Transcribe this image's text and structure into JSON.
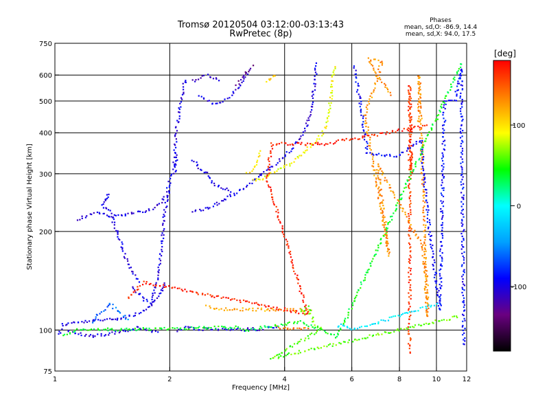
{
  "chart_data": {
    "type": "scatter",
    "title": "Tromsø 20120504 03:12:00-03:13:43",
    "subtitle": "RwPretec (8p)",
    "xlabel": "Frequency [MHz]",
    "ylabel": "Stationary phase Virtual Height [km]",
    "x_scale": "log",
    "y_scale": "log",
    "xlim": [
      1,
      12
    ],
    "ylim": [
      75,
      750
    ],
    "x_ticks": [
      1,
      2,
      4,
      6,
      8,
      10,
      12
    ],
    "y_ticks": [
      75,
      100,
      200,
      300,
      400,
      500,
      600,
      750
    ],
    "x_grid": [
      2,
      4,
      6,
      8,
      10
    ],
    "y_grid": [
      100,
      200,
      300,
      400,
      500,
      600
    ],
    "grid": true,
    "info_title": "Phases",
    "info_lines": [
      "mean, sd,O: -86.9, 14.4",
      "mean, sd,X:  94.0, 17.5"
    ],
    "colorbar": {
      "label": "[deg]",
      "range": [
        -180,
        180
      ],
      "ticks": [
        100,
        0,
        -100
      ],
      "colormap": [
        "#000000",
        "#6a0080",
        "#0000ff",
        "#00a0ff",
        "#00ffff",
        "#00ff00",
        "#ffff00",
        "#ff8000",
        "#ff0000"
      ]
    },
    "series": [
      {
        "phase": -100,
        "points": [
          [
            1.02,
            97
          ],
          [
            1.05,
            104
          ],
          [
            1.1,
            105
          ],
          [
            1.2,
            106
          ],
          [
            1.3,
            107
          ],
          [
            1.4,
            108
          ],
          [
            1.5,
            109
          ],
          [
            1.6,
            111
          ],
          [
            1.7,
            114
          ],
          [
            1.78,
            118
          ],
          [
            1.85,
            140
          ],
          [
            1.9,
            180
          ],
          [
            1.95,
            240
          ],
          [
            2.0,
            290
          ],
          [
            2.05,
            300
          ],
          [
            2.1,
            340
          ]
        ]
      },
      {
        "phase": -100,
        "points": [
          [
            1.15,
            218
          ],
          [
            1.2,
            222
          ],
          [
            1.25,
            225
          ],
          [
            1.3,
            228
          ],
          [
            1.35,
            225
          ],
          [
            1.4,
            222
          ],
          [
            1.5,
            225
          ],
          [
            1.6,
            228
          ],
          [
            1.7,
            230
          ],
          [
            1.8,
            235
          ],
          [
            1.9,
            245
          ],
          [
            2.0,
            265
          ]
        ]
      },
      {
        "phase": -100,
        "points": [
          [
            2.3,
            230
          ],
          [
            2.5,
            235
          ],
          [
            2.7,
            245
          ],
          [
            2.9,
            258
          ],
          [
            3.1,
            270
          ],
          [
            3.3,
            285
          ],
          [
            3.5,
            300
          ],
          [
            3.7,
            315
          ],
          [
            3.9,
            330
          ],
          [
            4.1,
            350
          ],
          [
            4.3,
            372
          ],
          [
            4.5,
            400
          ],
          [
            4.7,
            470
          ],
          [
            4.8,
            560
          ],
          [
            4.85,
            650
          ]
        ]
      },
      {
        "phase": -100,
        "points": [
          [
            2.05,
            310
          ],
          [
            2.06,
            330
          ],
          [
            2.07,
            360
          ],
          [
            2.08,
            400
          ],
          [
            2.09,
            420
          ],
          [
            2.1,
            440
          ],
          [
            2.12,
            470
          ],
          [
            2.15,
            520
          ],
          [
            2.18,
            560
          ],
          [
            2.2,
            580
          ]
        ]
      },
      {
        "phase": -100,
        "points": [
          [
            2.4,
            520
          ],
          [
            2.5,
            500
          ],
          [
            2.6,
            490
          ],
          [
            2.7,
            495
          ],
          [
            2.8,
            505
          ],
          [
            2.9,
            520
          ],
          [
            3.0,
            545
          ],
          [
            3.1,
            575
          ],
          [
            3.2,
            610
          ]
        ]
      },
      {
        "phase": -110,
        "points": [
          [
            2.3,
            575
          ],
          [
            2.4,
            590
          ],
          [
            2.5,
            600
          ],
          [
            2.6,
            590
          ],
          [
            2.7,
            580
          ]
        ]
      },
      {
        "phase": -130,
        "points": [
          [
            3.0,
            560
          ],
          [
            3.1,
            590
          ],
          [
            3.2,
            620
          ],
          [
            3.3,
            640
          ]
        ]
      },
      {
        "phase": -100,
        "points": [
          [
            2.1,
            100
          ],
          [
            2.2,
            102
          ],
          [
            2.3,
            101
          ],
          [
            2.4,
            100
          ],
          [
            2.5,
            101
          ],
          [
            2.7,
            100
          ],
          [
            2.9,
            101
          ],
          [
            3.1,
            100
          ],
          [
            3.3,
            101
          ],
          [
            3.5,
            100
          ]
        ]
      },
      {
        "phase": -80,
        "points": [
          [
            3.6,
            101
          ],
          [
            3.7,
            102
          ],
          [
            3.8,
            101
          ]
        ]
      },
      {
        "phase": -100,
        "points": [
          [
            1.6,
            135
          ],
          [
            1.65,
            130
          ],
          [
            1.7,
            125
          ],
          [
            1.75,
            122
          ],
          [
            1.8,
            120
          ],
          [
            1.85,
            125
          ],
          [
            1.9,
            130
          ],
          [
            1.95,
            140
          ]
        ]
      },
      {
        "phase": -100,
        "points": [
          [
            2.3,
            330
          ],
          [
            2.4,
            310
          ],
          [
            2.5,
            300
          ],
          [
            2.55,
            290
          ],
          [
            2.6,
            280
          ],
          [
            2.7,
            275
          ],
          [
            2.8,
            270
          ],
          [
            2.9,
            265
          ]
        ]
      },
      {
        "phase": -100,
        "points": [
          [
            1.35,
            250
          ],
          [
            1.38,
            260
          ],
          [
            1.33,
            240
          ],
          [
            1.4,
            230
          ],
          [
            1.45,
            200
          ],
          [
            1.5,
            180
          ],
          [
            1.55,
            160
          ],
          [
            1.6,
            150
          ],
          [
            1.65,
            140
          ]
        ]
      },
      {
        "phase": -100,
        "points": [
          [
            1.08,
            100
          ],
          [
            1.12,
            98
          ],
          [
            1.18,
            97
          ],
          [
            1.25,
            96
          ],
          [
            1.35,
            97
          ],
          [
            1.45,
            98
          ],
          [
            1.55,
            100
          ],
          [
            1.65,
            102
          ],
          [
            1.75,
            100
          ],
          [
            1.85,
            98
          ]
        ]
      },
      {
        "phase": 90,
        "points": [
          [
            3.3,
            285
          ],
          [
            3.5,
            290
          ],
          [
            3.7,
            300
          ],
          [
            3.9,
            310
          ],
          [
            4.1,
            320
          ],
          [
            4.3,
            335
          ],
          [
            4.5,
            350
          ],
          [
            4.7,
            365
          ],
          [
            4.9,
            385
          ],
          [
            5.1,
            410
          ],
          [
            5.2,
            450
          ],
          [
            5.3,
            520
          ],
          [
            5.35,
            580
          ],
          [
            5.4,
            640
          ]
        ]
      },
      {
        "phase": 100,
        "points": [
          [
            3.2,
            300
          ],
          [
            3.3,
            310
          ],
          [
            3.4,
            330
          ],
          [
            3.45,
            350
          ]
        ]
      },
      {
        "phase": 110,
        "points": [
          [
            3.6,
            570
          ],
          [
            3.7,
            585
          ],
          [
            3.8,
            600
          ]
        ]
      },
      {
        "phase": 140,
        "points": [
          [
            3.8,
            102
          ],
          [
            4.0,
            101
          ],
          [
            4.3,
            102
          ],
          [
            4.6,
            101
          ]
        ]
      },
      {
        "phase": 120,
        "points": [
          [
            2.5,
            118
          ],
          [
            2.6,
            116
          ],
          [
            4.7,
            115
          ]
        ]
      },
      {
        "phase": -60,
        "points": [
          [
            1.25,
            105
          ],
          [
            1.3,
            112
          ],
          [
            1.4,
            120
          ],
          [
            1.45,
            115
          ],
          [
            1.55,
            108
          ]
        ]
      },
      {
        "phase": 160,
        "points": [
          [
            8.5,
            85
          ],
          [
            8.5,
            200
          ],
          [
            8.5,
            270
          ],
          [
            8.5,
            330
          ],
          [
            8.5,
            390
          ],
          [
            8.5,
            460
          ],
          [
            8.5,
            560
          ],
          [
            8.6,
            300
          ],
          [
            8.6,
            350
          ]
        ]
      },
      {
        "phase": 130,
        "points": [
          [
            9.0,
            430
          ],
          [
            9.0,
            600
          ],
          [
            9.5,
            110
          ],
          [
            9.2,
            180
          ],
          [
            7.0,
            320
          ],
          [
            7.5,
            170
          ],
          [
            6.5,
            450
          ],
          [
            7.2,
            660
          ],
          [
            6.6,
            670
          ],
          [
            7.6,
            520
          ]
        ]
      },
      {
        "phase": -90,
        "points": [
          [
            6.1,
            635
          ],
          [
            6.6,
            345
          ],
          [
            7.9,
            340
          ],
          [
            9.1,
            380
          ],
          [
            9.6,
            200
          ],
          [
            10.2,
            115
          ],
          [
            10.3,
            190
          ],
          [
            10.5,
            500
          ],
          [
            11.2,
            500
          ],
          [
            11.6,
            630
          ],
          [
            11.8,
            90
          ]
        ]
      },
      {
        "phase": 40,
        "points": [
          [
            1.05,
            97
          ],
          [
            1.15,
            100
          ],
          [
            3.0,
            102
          ],
          [
            3.2,
            100
          ],
          [
            3.5,
            102
          ],
          [
            4.4,
            106
          ],
          [
            5.5,
            95
          ],
          [
            11.6,
            650
          ]
        ]
      },
      {
        "phase": 170,
        "points": [
          [
            1.55,
            125
          ],
          [
            1.7,
            140
          ],
          [
            4.6,
            112
          ],
          [
            3.6,
            290
          ],
          [
            3.7,
            370
          ],
          [
            5.1,
            370
          ],
          [
            9.4,
            420
          ]
        ]
      },
      {
        "phase": -10,
        "points": [
          [
            5.5,
            103
          ],
          [
            5.7,
            104
          ],
          [
            6.0,
            100
          ],
          [
            10.0,
            120
          ]
        ]
      },
      {
        "phase": 60,
        "points": [
          [
            4.4,
            115
          ],
          [
            4.5,
            113
          ],
          [
            4.6,
            118
          ],
          [
            4.8,
            104
          ],
          [
            5.0,
            101
          ],
          [
            3.7,
            82
          ],
          [
            11.4,
            110
          ]
        ]
      }
    ]
  }
}
